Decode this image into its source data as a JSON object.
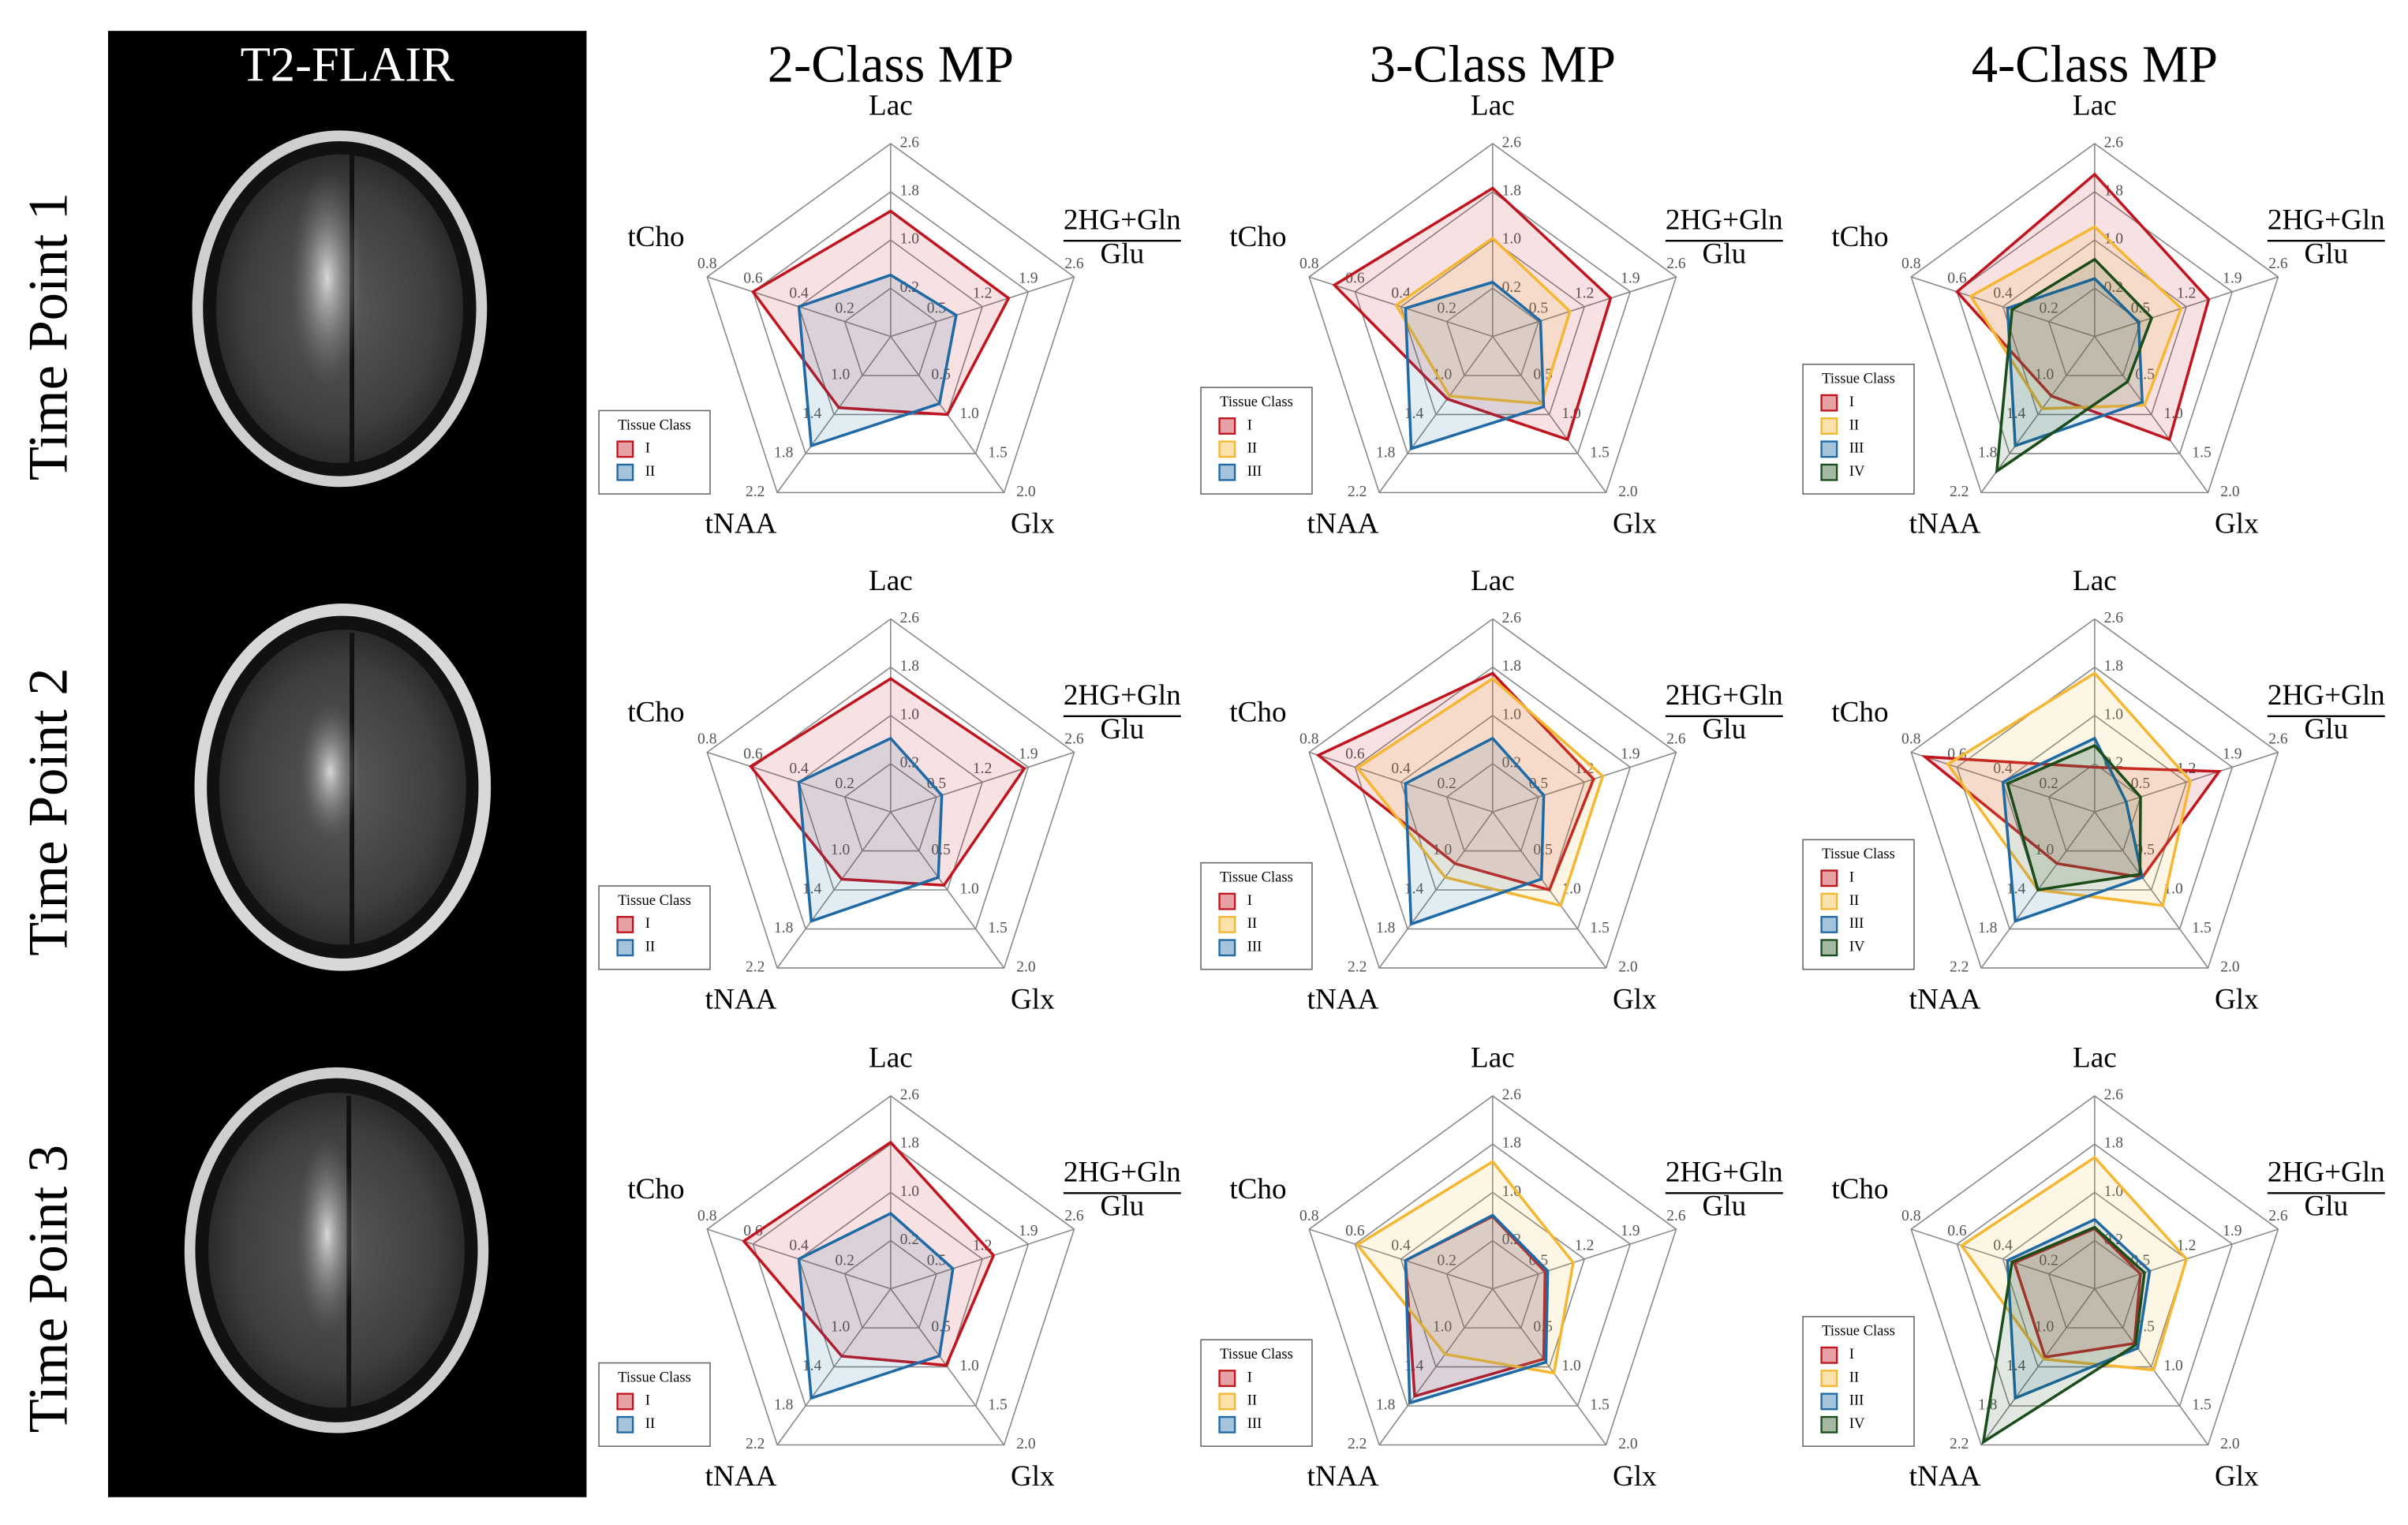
{
  "figure": {
    "title": "T2-FLAIR",
    "rows": [
      "Time Point 1",
      "Time Point 2",
      "Time Point 3"
    ]
  },
  "chart_data": [
    {
      "type": "radar",
      "title": "2-Class MP",
      "legend": "lower left",
      "legend_title": "Tissue Class",
      "axes": [
        {
          "name": "Lac",
          "ylim": [
            -0.6,
            2.6
          ],
          "yticks": [
            0.2,
            {
              "value": 1,
              "label": "1.0"
            },
            1.8,
            2.6
          ]
        },
        {
          "name": "2HG+Gln",
          "denominator": "Glu",
          "ylim": [
            -0.2,
            2.6
          ],
          "yticks": [
            0.5,
            1.2,
            1.9,
            2.6
          ]
        },
        {
          "name": "Glx",
          "ylim": [
            0,
            2
          ],
          "yticks": [
            0.5,
            {
              "value": 1,
              "label": "1.0"
            },
            1.5,
            {
              "value": 2,
              "label": "2.0"
            }
          ]
        },
        {
          "name": "tNAA",
          "ylim": [
            0.6,
            2.2
          ],
          "yticks": [
            {
              "value": 1,
              "label": "1.0"
            },
            1.4,
            1.8,
            2.2
          ]
        },
        {
          "name": "tCho",
          "ylim": [
            0,
            0.8
          ],
          "yticks": [
            0.2,
            0.4,
            0.6,
            0.8
          ]
        }
      ],
      "series": [
        {
          "name": "I",
          "color": "#c0151f",
          "values": [
            1.48,
            1.6,
            1.0,
            1.33,
            0.6
          ]
        },
        {
          "name": "II",
          "color": "#1f6aa5",
          "values": [
            0.42,
            0.8,
            0.86,
            1.72,
            0.4
          ]
        }
      ]
    },
    {
      "type": "radar",
      "title": "3-Class MP",
      "legend": "lower left",
      "legend_title": "Tissue Class",
      "axes": [
        {
          "name": "Lac",
          "ylim": [
            -0.6,
            2.6
          ],
          "yticks": [
            0.2,
            {
              "value": 1,
              "label": "1.0"
            },
            1.8,
            2.6
          ]
        },
        {
          "name": "2HG+Gln",
          "denominator": "Glu",
          "ylim": [
            -0.2,
            2.6
          ],
          "yticks": [
            0.5,
            1.2,
            1.9,
            2.6
          ]
        },
        {
          "name": "Glx",
          "ylim": [
            0,
            2
          ],
          "yticks": [
            0.5,
            {
              "value": 1,
              "label": "1.0"
            },
            1.5,
            {
              "value": 2,
              "label": "2.0"
            }
          ]
        },
        {
          "name": "tNAA",
          "ylim": [
            0.6,
            2.2
          ],
          "yticks": [
            {
              "value": 1,
              "label": "1.0"
            },
            1.4,
            1.8,
            2.2
          ]
        },
        {
          "name": "tCho",
          "ylim": [
            0,
            0.8
          ],
          "yticks": [
            0.2,
            0.4,
            0.6,
            0.8
          ]
        }
      ],
      "series": [
        {
          "name": "I",
          "color": "#c0151f",
          "values": [
            1.86,
            1.6,
            1.32,
            1.24,
            0.69
          ]
        },
        {
          "name": "II",
          "color": "#f5b731",
          "values": [
            1.03,
            0.98,
            0.86,
            1.21,
            0.42
          ]
        },
        {
          "name": "III",
          "color": "#1f6aa5",
          "values": [
            0.3,
            0.53,
            0.9,
            1.75,
            0.38
          ]
        }
      ]
    },
    {
      "type": "radar",
      "title": "4-Class MP",
      "legend": "lower left",
      "legend_title": "Tissue Class",
      "axes": [
        {
          "name": "Lac",
          "ylim": [
            -0.6,
            2.6
          ],
          "yticks": [
            0.2,
            {
              "value": 1,
              "label": "1.0"
            },
            1.8,
            2.6
          ]
        },
        {
          "name": "2HG+Gln",
          "denominator": "Glu",
          "ylim": [
            -0.2,
            2.6
          ],
          "yticks": [
            0.5,
            1.2,
            1.9,
            2.6
          ]
        },
        {
          "name": "Glx",
          "ylim": [
            0,
            2
          ],
          "yticks": [
            0.5,
            {
              "value": 1,
              "label": "1.0"
            },
            1.5,
            {
              "value": 2,
              "label": "2.0"
            }
          ]
        },
        {
          "name": "tNAA",
          "ylim": [
            0.6,
            2.2
          ],
          "yticks": [
            {
              "value": 1,
              "label": "1.0"
            },
            1.4,
            1.8,
            2.2
          ]
        },
        {
          "name": "tCho",
          "ylim": [
            0,
            0.8
          ],
          "yticks": [
            0.2,
            0.4,
            0.6,
            0.8
          ]
        }
      ],
      "series": [
        {
          "name": "I",
          "color": "#c0151f",
          "values": [
            2.09,
            1.54,
            1.32,
            1.21,
            0.6
          ]
        },
        {
          "name": "II",
          "color": "#f5b731",
          "values": [
            1.22,
            1.12,
            0.88,
            1.34,
            0.54
          ]
        },
        {
          "name": "III",
          "color": "#1f6aa5",
          "values": [
            0.36,
            0.47,
            0.84,
            1.72,
            0.38
          ]
        },
        {
          "name": "IV",
          "color": "#1b4d1b",
          "values": [
            0.68,
            0.67,
            0.58,
            1.98,
            0.36
          ]
        }
      ]
    },
    {
      "type": "radar",
      "legend": "lower left",
      "legend_title": "Tissue Class",
      "axes": [
        {
          "name": "Lac",
          "ylim": [
            -0.6,
            2.6
          ],
          "yticks": [
            0.2,
            {
              "value": 1,
              "label": "1.0"
            },
            1.8,
            2.6
          ]
        },
        {
          "name": "2HG+Gln",
          "denominator": "Glu",
          "ylim": [
            -0.2,
            2.6
          ],
          "yticks": [
            0.5,
            1.2,
            1.9,
            2.6
          ]
        },
        {
          "name": "Glx",
          "ylim": [
            0,
            2
          ],
          "yticks": [
            0.5,
            {
              "value": 1,
              "label": "1.0"
            },
            1.5,
            {
              "value": 2,
              "label": "2.0"
            }
          ]
        },
        {
          "name": "tNAA",
          "ylim": [
            0.6,
            2.2
          ],
          "yticks": [
            {
              "value": 1,
              "label": "1.0"
            },
            1.4,
            1.8,
            2.2
          ]
        },
        {
          "name": "tCho",
          "ylim": [
            0,
            0.8
          ],
          "yticks": [
            0.2,
            0.4,
            0.6,
            0.8
          ]
        }
      ],
      "series": [
        {
          "name": "I",
          "color": "#c0151f",
          "values": [
            1.61,
            1.84,
            0.94,
            1.29,
            0.61
          ]
        },
        {
          "name": "II",
          "color": "#1f6aa5",
          "values": [
            0.62,
            0.58,
            0.84,
            1.72,
            0.4
          ]
        }
      ]
    },
    {
      "type": "radar",
      "legend": "lower left",
      "legend_title": "Tissue Class",
      "axes": [
        {
          "name": "Lac",
          "ylim": [
            -0.6,
            2.6
          ],
          "yticks": [
            0.2,
            {
              "value": 1,
              "label": "1.0"
            },
            1.8,
            2.6
          ]
        },
        {
          "name": "2HG+Gln",
          "denominator": "Glu",
          "ylim": [
            -0.2,
            2.6
          ],
          "yticks": [
            0.5,
            1.2,
            1.9,
            2.6
          ]
        },
        {
          "name": "Glx",
          "ylim": [
            0,
            2
          ],
          "yticks": [
            0.5,
            {
              "value": 1,
              "label": "1.0"
            },
            1.5,
            {
              "value": 2,
              "label": "2.0"
            }
          ]
        },
        {
          "name": "tNAA",
          "ylim": [
            0.6,
            2.2
          ],
          "yticks": [
            {
              "value": 1,
              "label": "1.0"
            },
            1.4,
            1.8,
            2.2
          ]
        },
        {
          "name": "tCho",
          "ylim": [
            0,
            0.8
          ],
          "yticks": [
            0.2,
            0.4,
            0.6,
            0.8
          ]
        }
      ],
      "series": [
        {
          "name": "I",
          "color": "#c0151f",
          "values": [
            1.7,
            1.34,
            1.0,
            1.13,
            0.76
          ]
        },
        {
          "name": "II",
          "color": "#f5b731",
          "values": [
            1.61,
            1.48,
            1.2,
            1.27,
            0.59
          ]
        },
        {
          "name": "III",
          "color": "#1f6aa5",
          "values": [
            0.62,
            0.58,
            0.86,
            1.75,
            0.38
          ]
        }
      ]
    },
    {
      "type": "radar",
      "legend": "lower left",
      "legend_title": "Tissue Class",
      "axes": [
        {
          "name": "Lac",
          "ylim": [
            -0.6,
            2.6
          ],
          "yticks": [
            0.2,
            {
              "value": 1,
              "label": "1.0"
            },
            1.8,
            2.6
          ]
        },
        {
          "name": "2HG+Gln",
          "denominator": "Glu",
          "ylim": [
            -0.2,
            2.6
          ],
          "yticks": [
            0.5,
            1.2,
            1.9,
            2.6
          ]
        },
        {
          "name": "Glx",
          "ylim": [
            0,
            2
          ],
          "yticks": [
            0.5,
            {
              "value": 1,
              "label": "1.0"
            },
            1.5,
            {
              "value": 2,
              "label": "2.0"
            }
          ]
        },
        {
          "name": "tNAA",
          "ylim": [
            0.6,
            2.2
          ],
          "yticks": [
            {
              "value": 1,
              "label": "1.0"
            },
            1.4,
            1.8,
            2.2
          ]
        },
        {
          "name": "tCho",
          "ylim": [
            0,
            0.8
          ],
          "yticks": [
            0.2,
            0.4,
            0.6,
            0.8
          ]
        }
      ],
      "series": [
        {
          "name": "I",
          "color": "#c0151f",
          "values": [
            0.14,
            1.7,
            0.84,
            1.13,
            0.74
          ]
        },
        {
          "name": "II",
          "color": "#f5b731",
          "values": [
            1.7,
            1.26,
            1.2,
            1.4,
            0.64
          ]
        },
        {
          "name": "III",
          "color": "#1f6aa5",
          "values": [
            0.62,
            0.28,
            0.84,
            1.72,
            0.4
          ]
        },
        {
          "name": "IV",
          "color": "#1b4d1b",
          "values": [
            0.5,
            0.5,
            0.8,
            1.4,
            0.38
          ]
        }
      ]
    },
    {
      "type": "radar",
      "legend": "lower left",
      "legend_title": "Tissue Class",
      "axes": [
        {
          "name": "Lac",
          "ylim": [
            -0.6,
            2.6
          ],
          "yticks": [
            0.2,
            {
              "value": 1,
              "label": "1.0"
            },
            1.8,
            2.6
          ]
        },
        {
          "name": "2HG+Gln",
          "denominator": "Glu",
          "ylim": [
            -0.2,
            2.6
          ],
          "yticks": [
            0.5,
            1.2,
            1.9,
            2.6
          ]
        },
        {
          "name": "Glx",
          "ylim": [
            0,
            2
          ],
          "yticks": [
            0.5,
            {
              "value": 1,
              "label": "1.0"
            },
            1.5,
            {
              "value": 2,
              "label": "2.0"
            }
          ]
        },
        {
          "name": "tNAA",
          "ylim": [
            0.6,
            2.2
          ],
          "yticks": [
            {
              "value": 1,
              "label": "1.0"
            },
            1.4,
            1.8,
            2.2
          ]
        },
        {
          "name": "tCho",
          "ylim": [
            0,
            0.8
          ],
          "yticks": [
            0.2,
            0.4,
            0.6,
            0.8
          ]
        }
      ],
      "series": [
        {
          "name": "I",
          "color": "#c0151f",
          "values": [
            1.83,
            1.37,
            0.98,
            1.29,
            0.64
          ]
        },
        {
          "name": "II",
          "color": "#1f6aa5",
          "values": [
            0.65,
            0.75,
            0.86,
            1.72,
            0.4
          ]
        }
      ]
    },
    {
      "type": "radar",
      "legend": "lower left",
      "legend_title": "Tissue Class",
      "axes": [
        {
          "name": "Lac",
          "ylim": [
            -0.6,
            2.6
          ],
          "yticks": [
            0.2,
            {
              "value": 1,
              "label": "1.0"
            },
            1.8,
            2.6
          ]
        },
        {
          "name": "2HG+Gln",
          "denominator": "Glu",
          "ylim": [
            -0.2,
            2.6
          ],
          "yticks": [
            0.5,
            1.2,
            1.9,
            2.6
          ]
        },
        {
          "name": "Glx",
          "ylim": [
            0,
            2
          ],
          "yticks": [
            0.5,
            {
              "value": 1,
              "label": "1.0"
            },
            1.5,
            {
              "value": 2,
              "label": "2.0"
            }
          ]
        },
        {
          "name": "tNAA",
          "ylim": [
            0.6,
            2.2
          ],
          "yticks": [
            {
              "value": 1,
              "label": "1.0"
            },
            1.4,
            1.8,
            2.2
          ]
        },
        {
          "name": "tCho",
          "ylim": [
            0,
            0.8
          ],
          "yticks": [
            0.2,
            0.4,
            0.6,
            0.8
          ]
        }
      ],
      "series": [
        {
          "name": "I",
          "color": "#c0151f",
          "values": [
            0.6,
            0.6,
            0.9,
            1.7,
            0.38
          ]
        },
        {
          "name": "II",
          "color": "#f5b731",
          "values": [
            1.51,
            1.03,
            1.08,
            1.27,
            0.59
          ]
        },
        {
          "name": "III",
          "color": "#1f6aa5",
          "values": [
            0.62,
            0.64,
            0.94,
            1.77,
            0.38
          ]
        }
      ]
    },
    {
      "type": "radar",
      "legend": "lower left",
      "legend_title": "Tissue Class",
      "axes": [
        {
          "name": "Lac",
          "ylim": [
            -0.6,
            2.6
          ],
          "yticks": [
            0.2,
            {
              "value": 1,
              "label": "1.0"
            },
            1.8,
            2.6
          ]
        },
        {
          "name": "2HG+Gln",
          "denominator": "Glu",
          "ylim": [
            -0.2,
            2.6
          ],
          "yticks": [
            0.5,
            1.2,
            1.9,
            2.6
          ]
        },
        {
          "name": "Glx",
          "ylim": [
            0,
            2
          ],
          "yticks": [
            0.5,
            {
              "value": 1,
              "label": "1.0"
            },
            1.5,
            {
              "value": 2,
              "label": "2.0"
            }
          ]
        },
        {
          "name": "tNAA",
          "ylim": [
            0.6,
            2.2
          ],
          "yticks": [
            {
              "value": 1,
              "label": "1.0"
            },
            1.4,
            1.8,
            2.2
          ]
        },
        {
          "name": "tCho",
          "ylim": [
            0,
            0.8
          ],
          "yticks": [
            0.2,
            0.4,
            0.6,
            0.8
          ]
        }
      ],
      "series": [
        {
          "name": "I",
          "color": "#c0151f",
          "values": [
            0.4,
            0.5,
            0.7,
            1.3,
            0.35
          ]
        },
        {
          "name": "II",
          "color": "#f5b731",
          "values": [
            1.58,
            1.2,
            1.04,
            1.32,
            0.58
          ]
        },
        {
          "name": "III",
          "color": "#1f6aa5",
          "values": [
            0.55,
            0.64,
            0.76,
            1.72,
            0.38
          ]
        },
        {
          "name": "IV",
          "color": "#1b4d1b",
          "values": [
            0.42,
            0.56,
            0.72,
            2.17,
            0.36
          ]
        }
      ]
    }
  ]
}
